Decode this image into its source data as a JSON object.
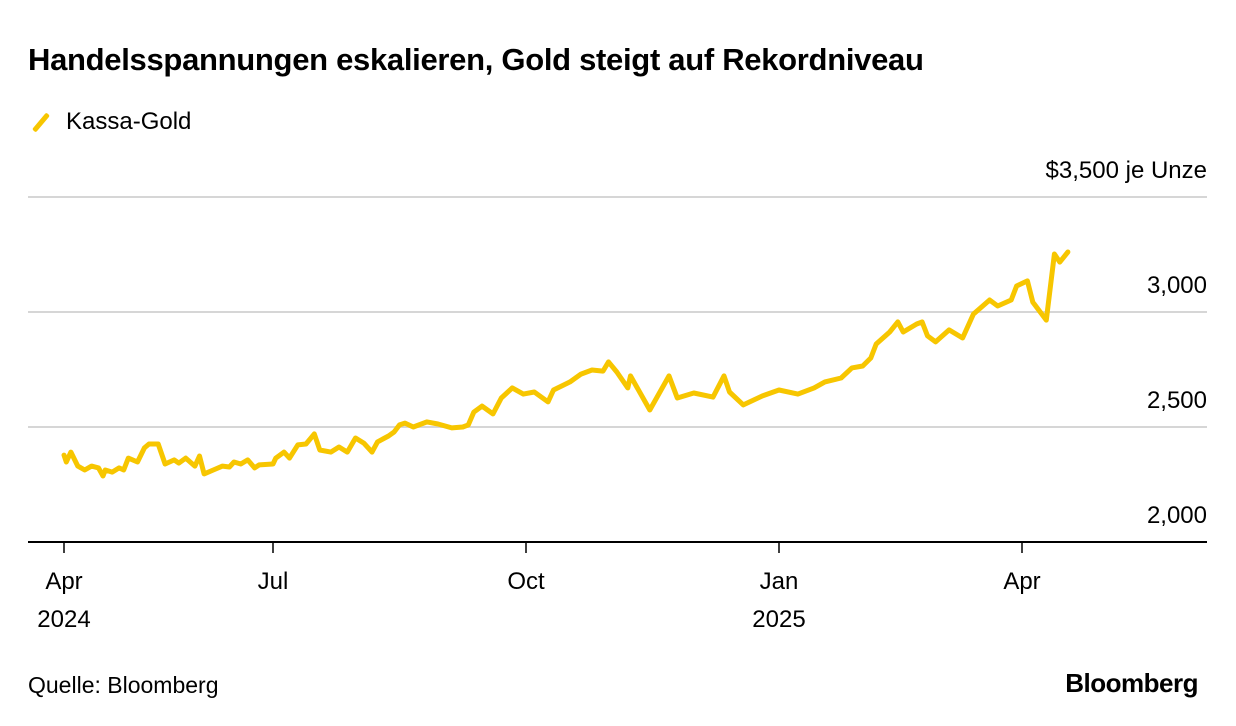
{
  "chart_data": {
    "type": "line",
    "title": "Handelsspannungen eskalieren, Gold steigt auf Rekordniveau",
    "unit_label": "$3,500 je Unze",
    "x_unit": "days since 2024-04-01",
    "ylim": [
      2000,
      3500
    ],
    "y_ticks": [
      {
        "value": 3500,
        "label": "$3,500 je Unze"
      },
      {
        "value": 3000,
        "label": "3,000"
      },
      {
        "value": 2500,
        "label": "2,500"
      },
      {
        "value": 2000,
        "label": "2,000"
      }
    ],
    "x_ticks": [
      {
        "day": 0,
        "label": "Apr",
        "year": "2024"
      },
      {
        "day": 91,
        "label": "Jul",
        "year": ""
      },
      {
        "day": 183,
        "label": "Oct",
        "year": ""
      },
      {
        "day": 275,
        "label": "Jan",
        "year": "2025"
      },
      {
        "day": 365,
        "label": "Apr",
        "year": ""
      }
    ],
    "grid": true,
    "legend_position": "top-left",
    "series": [
      {
        "name": "Kassa-Gold",
        "color": "#f7c600",
        "x": [
          0,
          1,
          3,
          6,
          9,
          12,
          15,
          17,
          18,
          21,
          24,
          26,
          28,
          32,
          35,
          37,
          41,
          44,
          48,
          50,
          53,
          57,
          59,
          61,
          65,
          69,
          72,
          74,
          77,
          80,
          83,
          85,
          91,
          92,
          95,
          97,
          100,
          103,
          106,
          108,
          112,
          115,
          118,
          121,
          124,
          127,
          129,
          133,
          135,
          137,
          139,
          142,
          147,
          151,
          156,
          160,
          162,
          164,
          167,
          171,
          174,
          178,
          182,
          186,
          191,
          193,
          199,
          203,
          207,
          211,
          213,
          216,
          220,
          221,
          228,
          235,
          238,
          244,
          251,
          255,
          257,
          262,
          269,
          275,
          282,
          288,
          292,
          298,
          302,
          306,
          309,
          311,
          316,
          319,
          321,
          326,
          328,
          330,
          333,
          338,
          343,
          347,
          353,
          356,
          361,
          363,
          367,
          369,
          374,
          377,
          379,
          382
        ],
        "values": [
          2378,
          2348,
          2391,
          2330,
          2313,
          2330,
          2322,
          2287,
          2313,
          2304,
          2322,
          2313,
          2365,
          2348,
          2409,
          2426,
          2426,
          2339,
          2357,
          2343,
          2365,
          2330,
          2374,
          2296,
          2313,
          2330,
          2326,
          2348,
          2339,
          2357,
          2322,
          2335,
          2339,
          2365,
          2391,
          2365,
          2422,
          2426,
          2470,
          2400,
          2391,
          2413,
          2391,
          2452,
          2430,
          2391,
          2435,
          2461,
          2478,
          2509,
          2517,
          2500,
          2522,
          2513,
          2496,
          2500,
          2509,
          2565,
          2591,
          2557,
          2626,
          2670,
          2643,
          2652,
          2609,
          2661,
          2696,
          2730,
          2748,
          2743,
          2783,
          2739,
          2670,
          2722,
          2574,
          2722,
          2626,
          2648,
          2630,
          2722,
          2652,
          2596,
          2635,
          2661,
          2643,
          2670,
          2696,
          2713,
          2757,
          2765,
          2800,
          2861,
          2913,
          2957,
          2913,
          2948,
          2957,
          2896,
          2870,
          2922,
          2887,
          2991,
          3052,
          3026,
          3052,
          3113,
          3135,
          3043,
          2965,
          3252,
          3217,
          3261
        ]
      }
    ]
  },
  "footer": {
    "source": "Quelle: Bloomberg",
    "logo": "Bloomberg"
  }
}
